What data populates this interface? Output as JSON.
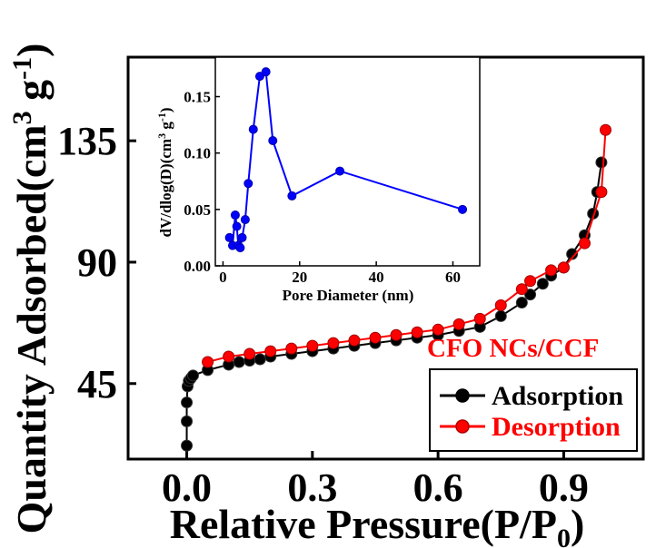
{
  "chart_data": [
    {
      "type": "line",
      "title": "",
      "xlabel": "Relative Pressure(P/P",
      "xlabel_sub": "0",
      "xlabel_tail": ")",
      "ylabel": "Quantity Adsorbed(cm",
      "ylabel_sup1": "3",
      "ylabel_mid": " g",
      "ylabel_sup2": "-1",
      "ylabel_tail": ")",
      "xlim": [
        -0.14,
        1.09
      ],
      "ylim": [
        17,
        166
      ],
      "xticks": [
        0.0,
        0.3,
        0.6,
        0.9
      ],
      "xtick_labels": [
        "0.0",
        "0.3",
        "0.6",
        "0.9"
      ],
      "yticks": [
        45,
        90,
        135
      ],
      "ytick_labels": [
        "45",
        "90",
        "135"
      ],
      "annotation": {
        "text": "CFO NCs/CCF",
        "color": "#ff0000"
      },
      "legend": {
        "position": "bottom-right"
      },
      "series": [
        {
          "name": "Adsorption",
          "color": "#000000",
          "x": [
            0.0,
            0.0,
            0.0,
            0.002,
            0.005,
            0.01,
            0.015,
            0.05,
            0.1,
            0.125,
            0.15,
            0.175,
            0.2,
            0.25,
            0.3,
            0.35,
            0.4,
            0.45,
            0.5,
            0.55,
            0.6,
            0.65,
            0.7,
            0.75,
            0.8,
            0.82,
            0.85,
            0.87,
            0.9,
            0.92,
            0.95,
            0.97,
            0.98,
            0.99
          ],
          "y": [
            22,
            31,
            38,
            44,
            46,
            47,
            48,
            50,
            52,
            53,
            53.5,
            54,
            55,
            56,
            57,
            58,
            59,
            60,
            61,
            62,
            63,
            64.5,
            66,
            70,
            75,
            78,
            82,
            85,
            88,
            93,
            100,
            108,
            116,
            127
          ]
        },
        {
          "name": "Desorption",
          "color": "#ff0000",
          "x": [
            0.05,
            0.1,
            0.15,
            0.2,
            0.25,
            0.3,
            0.35,
            0.4,
            0.45,
            0.5,
            0.55,
            0.6,
            0.65,
            0.7,
            0.75,
            0.8,
            0.82,
            0.87,
            0.9,
            0.95,
            0.99,
            1.0
          ],
          "y": [
            53,
            55,
            56,
            57,
            58,
            59,
            60,
            61,
            62,
            63,
            64,
            65,
            67,
            69,
            74,
            80,
            83,
            87,
            88,
            97,
            116,
            139
          ]
        }
      ]
    },
    {
      "type": "line",
      "title": "",
      "xlabel": "Pore Diameter (nm)",
      "ylabel": "dV/dlog(D)(cm",
      "ylabel_sup1": "3",
      "ylabel_mid": " g",
      "ylabel_sup2": "-1",
      "ylabel_tail": ")",
      "xlim": [
        -2,
        67
      ],
      "ylim": [
        0,
        0.185
      ],
      "xticks": [
        0,
        20,
        40,
        60
      ],
      "xtick_labels": [
        "0",
        "20",
        "40",
        "60"
      ],
      "yticks": [
        0.0,
        0.05,
        0.1,
        0.15
      ],
      "ytick_labels": [
        "0.00",
        "0.05",
        "0.10",
        "0.15"
      ],
      "series": [
        {
          "color": "#0000ff",
          "x": [
            1.7,
            2.5,
            3.2,
            3.6,
            4.0,
            4.5,
            5.0,
            5.8,
            6.6,
            7.9,
            9.6,
            11.2,
            13.0,
            18.0,
            30.5,
            62.5
          ],
          "y": [
            0.025,
            0.018,
            0.045,
            0.035,
            0.018,
            0.016,
            0.025,
            0.041,
            0.073,
            0.121,
            0.168,
            0.172,
            0.111,
            0.062,
            0.084,
            0.05
          ]
        }
      ]
    }
  ]
}
